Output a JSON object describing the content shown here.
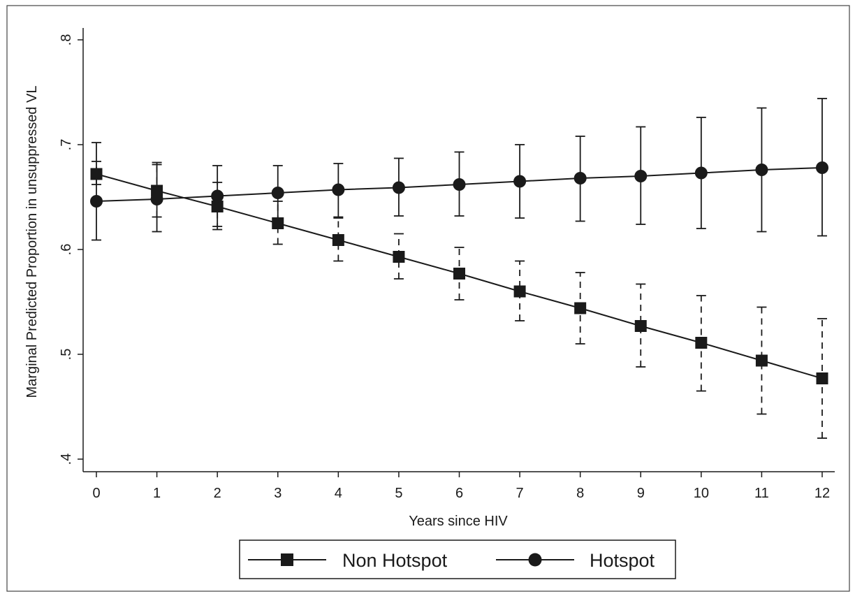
{
  "chart_data": {
    "type": "line",
    "title": "",
    "xlabel": "Years since HIV",
    "ylabel": "Marginal Predicted Proportion in unsuppressed VL",
    "x": [
      0,
      1,
      2,
      3,
      4,
      5,
      6,
      7,
      8,
      9,
      10,
      11,
      12
    ],
    "xlim": [
      0,
      12
    ],
    "ylim": [
      0.4,
      0.8
    ],
    "xticks": [
      "0",
      "1",
      "2",
      "3",
      "4",
      "5",
      "6",
      "7",
      "8",
      "9",
      "10",
      "11",
      "12"
    ],
    "yticks": [
      {
        "value": 0.4,
        "label": ".4"
      },
      {
        "value": 0.5,
        "label": ".5"
      },
      {
        "value": 0.6,
        "label": ".6"
      },
      {
        "value": 0.7,
        "label": ".7"
      },
      {
        "value": 0.8,
        "label": ".8"
      }
    ],
    "grid": false,
    "legend_position": "bottom",
    "series": [
      {
        "name": "Non Hotspot",
        "marker": "square",
        "error_bar_style": "dashed",
        "y": [
          0.672,
          0.656,
          0.641,
          0.625,
          0.609,
          0.593,
          0.577,
          0.56,
          0.544,
          0.527,
          0.511,
          0.494,
          0.477
        ],
        "lower": [
          0.662,
          0.631,
          0.619,
          0.605,
          0.589,
          0.572,
          0.552,
          0.532,
          0.51,
          0.488,
          0.465,
          0.443,
          0.42
        ],
        "upper": [
          0.684,
          0.681,
          0.664,
          0.646,
          0.63,
          0.615,
          0.602,
          0.589,
          0.578,
          0.567,
          0.556,
          0.545,
          0.534
        ]
      },
      {
        "name": "Hotspot",
        "marker": "circle",
        "error_bar_style": "solid",
        "y": [
          0.646,
          0.648,
          0.651,
          0.654,
          0.657,
          0.659,
          0.662,
          0.665,
          0.668,
          0.67,
          0.673,
          0.676,
          0.678
        ],
        "lower": [
          0.609,
          0.617,
          0.622,
          0.627,
          0.631,
          0.632,
          0.632,
          0.63,
          0.627,
          0.624,
          0.62,
          0.617,
          0.613
        ],
        "upper": [
          0.702,
          0.683,
          0.68,
          0.68,
          0.682,
          0.687,
          0.693,
          0.7,
          0.708,
          0.717,
          0.726,
          0.735,
          0.744
        ]
      }
    ]
  }
}
